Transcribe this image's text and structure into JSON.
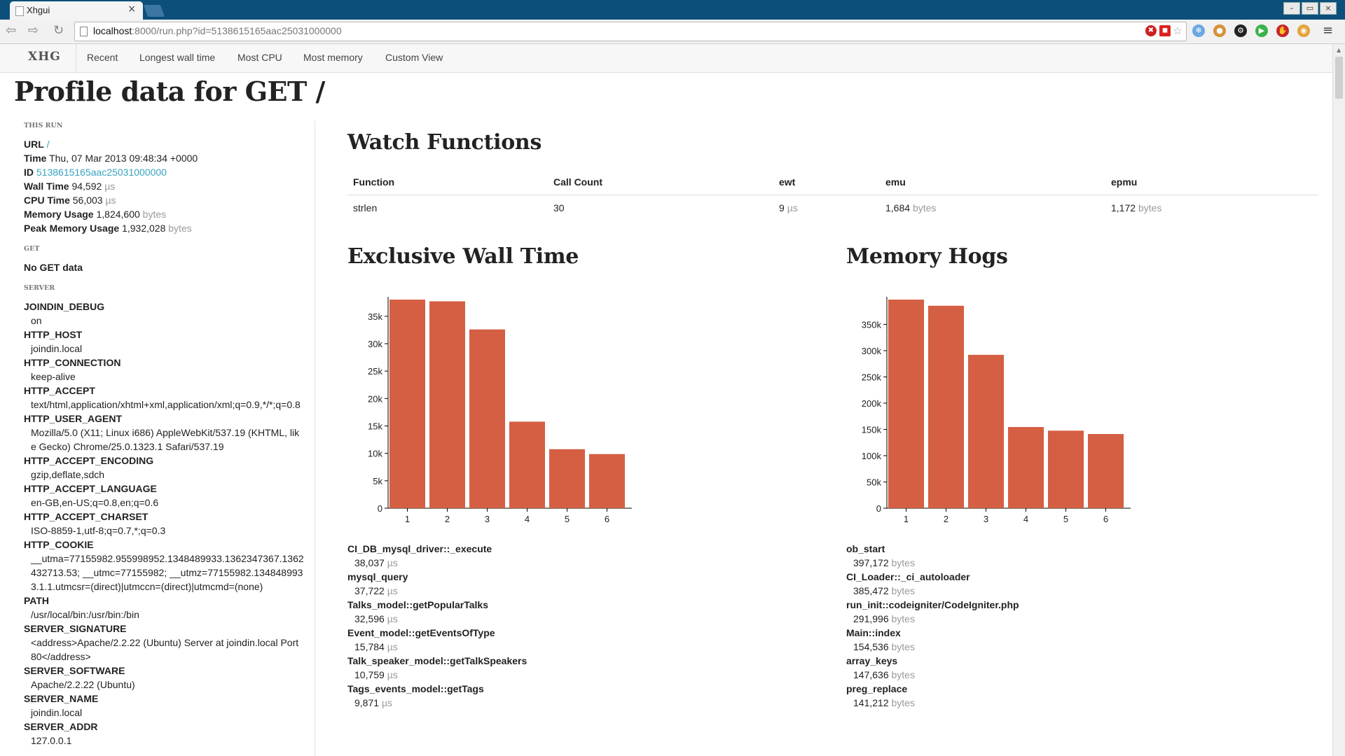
{
  "browser": {
    "tab_title": "Xhgui",
    "tab_close": "×",
    "url_host": "localhost",
    "url_rest": ":8000/run.php?id=5138615165aac25031000000",
    "win_min": "–",
    "win_restore": "▭",
    "win_close": "×"
  },
  "nav": {
    "brand": "XHG",
    "links": [
      "Recent",
      "Longest wall time",
      "Most CPU",
      "Most memory",
      "Custom View"
    ]
  },
  "page": {
    "title": "Profile data for GET /"
  },
  "sidebar": {
    "this_run": "THIS RUN",
    "url_label": "URL",
    "url_value": "/",
    "time_label": "Time",
    "time_value": "Thu, 07 Mar 2013 09:48:34 +0000",
    "id_label": "ID",
    "id_value": "5138615165aac25031000000",
    "wall_label": "Wall Time",
    "wall_value": "94,592",
    "wall_unit": "µs",
    "cpu_label": "CPU Time",
    "cpu_value": "56,003",
    "cpu_unit": "µs",
    "mem_label": "Memory Usage",
    "mem_value": "1,824,600",
    "mem_unit": "bytes",
    "peak_label": "Peak Memory Usage",
    "peak_value": "1,932,028",
    "peak_unit": "bytes",
    "get_heading": "GET",
    "get_empty": "No GET data",
    "server_heading": "SERVER",
    "server": [
      {
        "k": "JOINDIN_DEBUG",
        "v": "on"
      },
      {
        "k": "HTTP_HOST",
        "v": "joindin.local"
      },
      {
        "k": "HTTP_CONNECTION",
        "v": "keep-alive"
      },
      {
        "k": "HTTP_ACCEPT",
        "v": "text/html,application/xhtml+xml,application/xml;q=0.9,*/*;q=0.8"
      },
      {
        "k": "HTTP_USER_AGENT",
        "v": "Mozilla/5.0 (X11; Linux i686) AppleWebKit/537.19 (KHTML, like Gecko) Chrome/25.0.1323.1 Safari/537.19"
      },
      {
        "k": "HTTP_ACCEPT_ENCODING",
        "v": "gzip,deflate,sdch"
      },
      {
        "k": "HTTP_ACCEPT_LANGUAGE",
        "v": "en-GB,en-US;q=0.8,en;q=0.6"
      },
      {
        "k": "HTTP_ACCEPT_CHARSET",
        "v": "ISO-8859-1,utf-8;q=0.7,*;q=0.3"
      },
      {
        "k": "HTTP_COOKIE",
        "v": "__utma=77155982.955998952.1348489933.1362347367.1362432713.53; __utmc=77155982; __utmz=77155982.1348489933.1.1.utmcsr=(direct)|utmccn=(direct)|utmcmd=(none)"
      },
      {
        "k": "PATH",
        "v": "/usr/local/bin:/usr/bin:/bin"
      },
      {
        "k": "SERVER_SIGNATURE",
        "v": "<address>Apache/2.2.22 (Ubuntu) Server at joindin.local Port 80</address>"
      },
      {
        "k": "SERVER_SOFTWARE",
        "v": "Apache/2.2.22 (Ubuntu)"
      },
      {
        "k": "SERVER_NAME",
        "v": "joindin.local"
      },
      {
        "k": "SERVER_ADDR",
        "v": "127.0.0.1"
      }
    ]
  },
  "watch": {
    "title": "Watch Functions",
    "headers": [
      "Function",
      "Call Count",
      "ewt",
      "emu",
      "epmu"
    ],
    "row": {
      "function": "strlen",
      "count": "30",
      "ewt": "9",
      "ewt_unit": "µs",
      "emu": "1,684",
      "emu_unit": "bytes",
      "epmu": "1,172",
      "epmu_unit": "bytes"
    }
  },
  "chart_data": [
    {
      "type": "bar",
      "title": "Exclusive Wall Time",
      "categories": [
        "1",
        "2",
        "3",
        "4",
        "5",
        "6"
      ],
      "values": [
        38037,
        37722,
        32596,
        15784,
        10759,
        9871
      ],
      "yticks": [
        0,
        5000,
        10000,
        15000,
        20000,
        25000,
        30000,
        35000
      ],
      "ytick_labels": [
        "0",
        "5k",
        "10k",
        "15k",
        "20k",
        "25k",
        "30k",
        "35k"
      ],
      "ylim": [
        0,
        38037
      ],
      "color": "#d55f43",
      "labels": [
        "CI_DB_mysql_driver::_execute",
        "mysql_query",
        "Talks_model::getPopularTalks",
        "Event_model::getEventsOfType",
        "Talk_speaker_model::getTalkSpeakers",
        "Tags_events_model::getTags"
      ],
      "value_labels": [
        "38,037",
        "37,722",
        "32,596",
        "15,784",
        "10,759",
        "9,871"
      ],
      "unit": "µs"
    },
    {
      "type": "bar",
      "title": "Memory Hogs",
      "categories": [
        "1",
        "2",
        "3",
        "4",
        "5",
        "6"
      ],
      "values": [
        397172,
        385472,
        291996,
        154536,
        147636,
        141212
      ],
      "yticks": [
        0,
        50000,
        100000,
        150000,
        200000,
        250000,
        300000,
        350000
      ],
      "ytick_labels": [
        "0",
        "50k",
        "100k",
        "150k",
        "200k",
        "250k",
        "300k",
        "350k"
      ],
      "ylim": [
        0,
        397172
      ],
      "color": "#d55f43",
      "labels": [
        "ob_start",
        "CI_Loader::_ci_autoloader",
        "run_init::codeigniter/CodeIgniter.php",
        "Main::index",
        "array_keys",
        "preg_replace"
      ],
      "value_labels": [
        "397,172",
        "385,472",
        "291,996",
        "154,536",
        "147,636",
        "141,212"
      ],
      "unit": "bytes"
    }
  ]
}
